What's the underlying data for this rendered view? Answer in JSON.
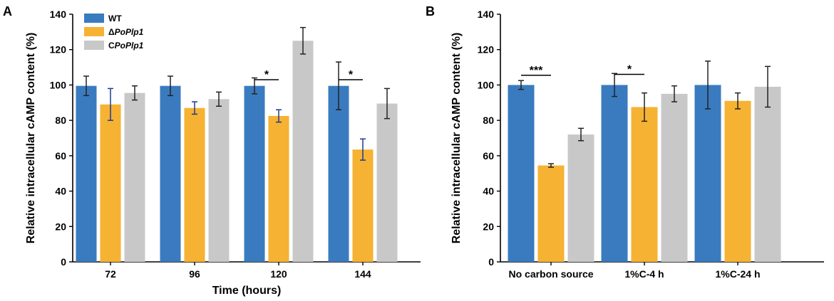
{
  "chart_data": [
    {
      "panel_label": "A",
      "type": "bar",
      "title": "",
      "xlabel": "Time (hours)",
      "ylabel": "Relative intracellular cAMP content (%)",
      "ylim": [
        0,
        140
      ],
      "yticks": [
        0,
        20,
        40,
        60,
        80,
        100,
        120,
        140
      ],
      "categories": [
        "72",
        "96",
        "120",
        "144"
      ],
      "legend": {
        "placement": "top-left"
      },
      "series": [
        {
          "name": "WT",
          "name_prefix": "",
          "name_italic": "",
          "color": "#3a7bbf",
          "errcolor": "#222222",
          "values": [
            99.5,
            99.5,
            99.5,
            99.5
          ],
          "errors": [
            5.5,
            5.5,
            4.5,
            13.5
          ]
        },
        {
          "name": "ΔPoPlp1",
          "name_prefix": "Δ",
          "name_italic": "PoPlp1",
          "color": "#f6b232",
          "errcolor": "#1f3a93",
          "values": [
            89,
            87,
            82.5,
            63.5
          ],
          "errors": [
            9,
            3.5,
            3.5,
            6
          ]
        },
        {
          "name": "CPoPlp1",
          "name_prefix": "C",
          "name_italic": "PoPlp1",
          "color": "#c8c8c8",
          "errcolor": "#222222",
          "values": [
            95.5,
            92,
            125,
            89.5
          ],
          "errors": [
            4,
            4,
            7.5,
            8.5
          ]
        }
      ],
      "annotations": [
        {
          "text": "*",
          "category_index": 2,
          "from_series": 0,
          "to_series": 1,
          "y": 103
        },
        {
          "text": "*",
          "category_index": 3,
          "from_series": 0,
          "to_series": 1,
          "y": 103
        }
      ]
    },
    {
      "panel_label": "B",
      "type": "bar",
      "title": "",
      "xlabel": "",
      "ylabel": "Relative intracellular cAMP content (%)",
      "ylim": [
        0,
        140
      ],
      "yticks": [
        0,
        20,
        40,
        60,
        80,
        100,
        120,
        140
      ],
      "categories": [
        "No carbon source",
        "1%C-4 h",
        "1%C-24 h"
      ],
      "legend": null,
      "series": [
        {
          "name": "WT",
          "color": "#3a7bbf",
          "errcolor": "#222222",
          "values": [
            100,
            100,
            100
          ],
          "errors": [
            2.5,
            6.5,
            13.5
          ]
        },
        {
          "name": "ΔPoPlp1",
          "color": "#f6b232",
          "errcolor": "#222222",
          "values": [
            54.5,
            87.5,
            91
          ],
          "errors": [
            1,
            8,
            4.5
          ]
        },
        {
          "name": "CPoPlp1",
          "color": "#c8c8c8",
          "errcolor": "#222222",
          "values": [
            72,
            95,
            99
          ],
          "errors": [
            3.5,
            4.5,
            11.5
          ]
        }
      ],
      "annotations": [
        {
          "text": "***",
          "category_index": 0,
          "from_series": 0,
          "to_series": 1,
          "y": 105.5
        },
        {
          "text": "*",
          "category_index": 1,
          "from_series": 0,
          "to_series": 1,
          "y": 106
        }
      ]
    }
  ]
}
